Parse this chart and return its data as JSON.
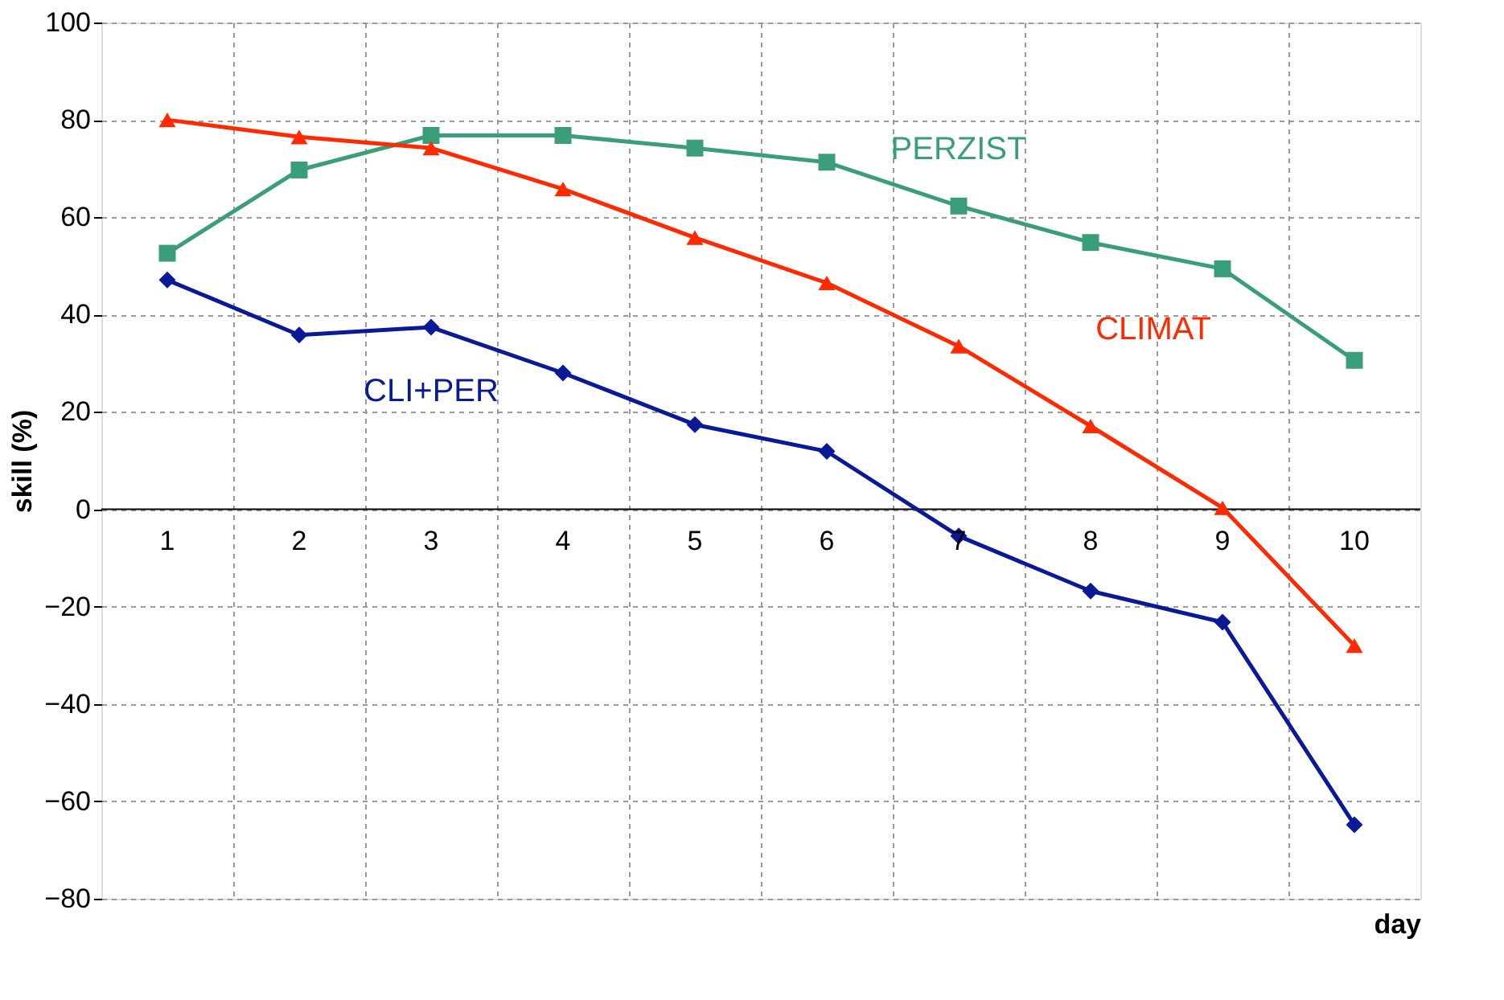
{
  "chart_data": {
    "type": "line",
    "xlabel": "day",
    "ylabel": "skill (%)",
    "categories": [
      "1",
      "2",
      "3",
      "4",
      "5",
      "6",
      "7",
      "8",
      "9",
      "10"
    ],
    "ylim": [
      -80,
      100
    ],
    "yticks": [
      -80,
      -60,
      -40,
      -20,
      0,
      20,
      40,
      60,
      80,
      100
    ],
    "grid": true,
    "legend": false,
    "line_style": "solid",
    "series": [
      {
        "name": "PERZIST",
        "color": "#3a9e78",
        "marker": "square",
        "values": [
          52.6,
          69.7,
          76.8,
          76.8,
          74.2,
          71.3,
          62.3,
          54.8,
          49.4,
          30.6
        ]
      },
      {
        "name": "CLIMAT",
        "color": "#ff2a00",
        "marker": "triangle",
        "values": [
          80,
          76.5,
          74.2,
          65.8,
          55.8,
          46.5,
          33.5,
          17.1,
          0.3,
          -28
        ]
      },
      {
        "name": "CLI+PER",
        "color": "#0a1a96",
        "marker": "diamond",
        "values": [
          47.1,
          35.8,
          37.4,
          28,
          17.4,
          11.9,
          -5.5,
          -16.8,
          -23.2,
          -64.8
        ]
      }
    ]
  }
}
